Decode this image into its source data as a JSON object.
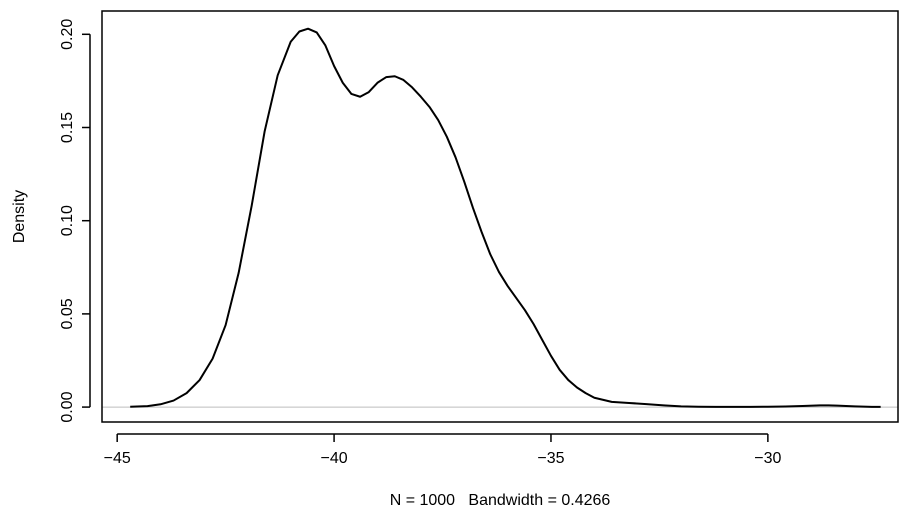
{
  "chart_data": {
    "type": "line",
    "title": "",
    "xlabel": "N = 1000   Bandwidth = 0.4266",
    "ylabel": "Density",
    "xlim": [
      -45.35,
      -27.0
    ],
    "ylim": [
      -0.008,
      0.2125
    ],
    "x_ticks": [
      -45,
      -40,
      -35,
      -30
    ],
    "x_tick_labels": [
      "−45",
      "−40",
      "−35",
      "−30"
    ],
    "y_ticks": [
      0.0,
      0.05,
      0.1,
      0.15,
      0.2
    ],
    "y_tick_labels": [
      "0.00",
      "0.05",
      "0.10",
      "0.15",
      "0.20"
    ],
    "grid": false,
    "zero_line": true,
    "series": [
      {
        "x": [
          -44.7,
          -44.3,
          -44.0,
          -43.7,
          -43.4,
          -43.1,
          -42.8,
          -42.5,
          -42.2,
          -41.9,
          -41.6,
          -41.3,
          -41.0,
          -40.8,
          -40.6,
          -40.4,
          -40.2,
          -40.0,
          -39.8,
          -39.6,
          -39.4,
          -39.2,
          -39.0,
          -38.8,
          -38.6,
          -38.4,
          -38.2,
          -38.0,
          -37.8,
          -37.6,
          -37.4,
          -37.2,
          -37.0,
          -36.8,
          -36.6,
          -36.4,
          -36.2,
          -36.0,
          -35.8,
          -35.6,
          -35.4,
          -35.2,
          -35.0,
          -34.8,
          -34.6,
          -34.4,
          -34.2,
          -34.0,
          -33.6,
          -33.2,
          -32.8,
          -32.4,
          -32.0,
          -31.6,
          -31.2,
          -30.8,
          -30.4,
          -30.0,
          -29.6,
          -29.2,
          -28.8,
          -28.6,
          -28.4,
          -28.0,
          -27.6,
          -27.4
        ],
        "y": [
          0.0002,
          0.0005,
          0.0015,
          0.0035,
          0.0075,
          0.0145,
          0.026,
          0.044,
          0.072,
          0.108,
          0.148,
          0.178,
          0.196,
          0.2015,
          0.203,
          0.201,
          0.194,
          0.183,
          0.174,
          0.168,
          0.1665,
          0.169,
          0.174,
          0.177,
          0.1775,
          0.1755,
          0.1715,
          0.1665,
          0.161,
          0.154,
          0.145,
          0.134,
          0.121,
          0.107,
          0.094,
          0.082,
          0.0725,
          0.065,
          0.0585,
          0.052,
          0.0445,
          0.036,
          0.0275,
          0.02,
          0.0145,
          0.0105,
          0.0075,
          0.005,
          0.0028,
          0.0022,
          0.0016,
          0.0009,
          0.0004,
          0.0002,
          0.0001,
          0.0001,
          0.0001,
          0.0002,
          0.0003,
          0.0006,
          0.0009,
          0.0009,
          0.0008,
          0.0004,
          0.0001,
          0.0001
        ]
      }
    ]
  }
}
